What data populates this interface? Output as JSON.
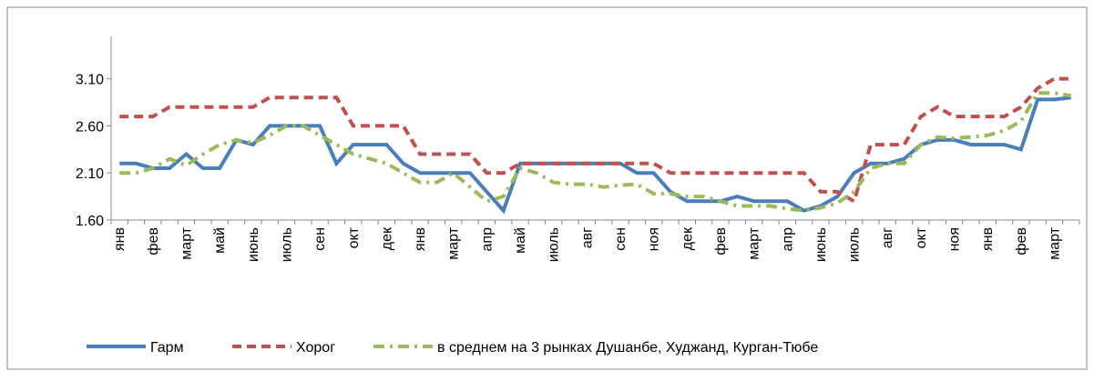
{
  "chart_data": {
    "type": "line",
    "categories": [
      "янв",
      null,
      "фев",
      null,
      "март",
      null,
      "май",
      null,
      "июнь",
      null,
      "июль",
      null,
      "сен",
      null,
      "окт",
      null,
      "дек",
      null,
      "янв",
      null,
      "март",
      null,
      "апр",
      null,
      "май",
      null,
      "июль",
      null,
      "авг",
      null,
      "сен",
      null,
      "ноя",
      null,
      "дек",
      null,
      "фев",
      null,
      "март",
      null,
      "апр",
      null,
      "июнь",
      null,
      "июль",
      null,
      "авг",
      null,
      "окт",
      null,
      "ноя",
      null,
      "янв",
      null,
      "фев",
      null,
      "март",
      null
    ],
    "series": [
      {
        "name": "Гарм",
        "color": "#4a7ebb",
        "dash": "solid",
        "values": [
          2.2,
          2.2,
          2.15,
          2.15,
          2.3,
          2.15,
          2.15,
          2.45,
          2.4,
          2.6,
          2.6,
          2.6,
          2.6,
          2.2,
          2.4,
          2.4,
          2.4,
          2.2,
          2.1,
          2.1,
          2.1,
          2.1,
          1.9,
          1.7,
          2.2,
          2.2,
          2.2,
          2.2,
          2.2,
          2.2,
          2.2,
          2.1,
          2.1,
          1.9,
          1.8,
          1.8,
          1.8,
          1.85,
          1.8,
          1.8,
          1.8,
          1.7,
          1.75,
          1.85,
          2.1,
          2.2,
          2.2,
          2.25,
          2.4,
          2.45,
          2.45,
          2.4,
          2.4,
          2.4,
          2.35,
          2.88,
          2.88,
          2.9
        ]
      },
      {
        "name": "Хорог",
        "color": "#c0504d",
        "dash": "dash",
        "values": [
          2.7,
          2.7,
          2.7,
          2.8,
          2.8,
          2.8,
          2.8,
          2.8,
          2.8,
          2.9,
          2.9,
          2.9,
          2.9,
          2.9,
          2.6,
          2.6,
          2.6,
          2.6,
          2.3,
          2.3,
          2.3,
          2.3,
          2.1,
          2.1,
          2.2,
          2.2,
          2.2,
          2.2,
          2.2,
          2.2,
          2.2,
          2.2,
          2.2,
          2.1,
          2.1,
          2.1,
          2.1,
          2.1,
          2.1,
          2.1,
          2.1,
          2.1,
          1.9,
          1.9,
          1.8,
          2.4,
          2.4,
          2.4,
          2.7,
          2.8,
          2.7,
          2.7,
          2.7,
          2.7,
          2.8,
          3.0,
          3.1,
          3.1
        ]
      },
      {
        "name": "в среднем на 3 рынках Душанбе, Худжанд, Курган-Тюбе",
        "color": "#9bbb59",
        "dash": "dashdot",
        "values": [
          2.1,
          2.1,
          2.15,
          2.25,
          2.18,
          2.3,
          2.4,
          2.45,
          2.42,
          2.5,
          2.6,
          2.6,
          2.5,
          2.4,
          2.3,
          2.25,
          2.2,
          2.1,
          2.0,
          2.0,
          2.1,
          1.95,
          1.8,
          1.85,
          2.15,
          2.1,
          2.0,
          1.98,
          1.98,
          1.95,
          1.97,
          1.98,
          1.88,
          1.88,
          1.85,
          1.85,
          1.8,
          1.75,
          1.75,
          1.75,
          1.72,
          1.7,
          1.73,
          1.78,
          1.9,
          2.15,
          2.2,
          2.2,
          2.4,
          2.48,
          2.47,
          2.48,
          2.5,
          2.55,
          2.65,
          2.95,
          2.95,
          2.92
        ]
      }
    ],
    "ylim": [
      1.6,
      3.55
    ],
    "yticks": [
      {
        "value": 1.6,
        "label": "1.60"
      },
      {
        "value": 2.1,
        "label": "2.10"
      },
      {
        "value": 2.6,
        "label": "2.60"
      },
      {
        "value": 3.1,
        "label": "3.10"
      }
    ],
    "grid": false,
    "legend": "bottom"
  }
}
